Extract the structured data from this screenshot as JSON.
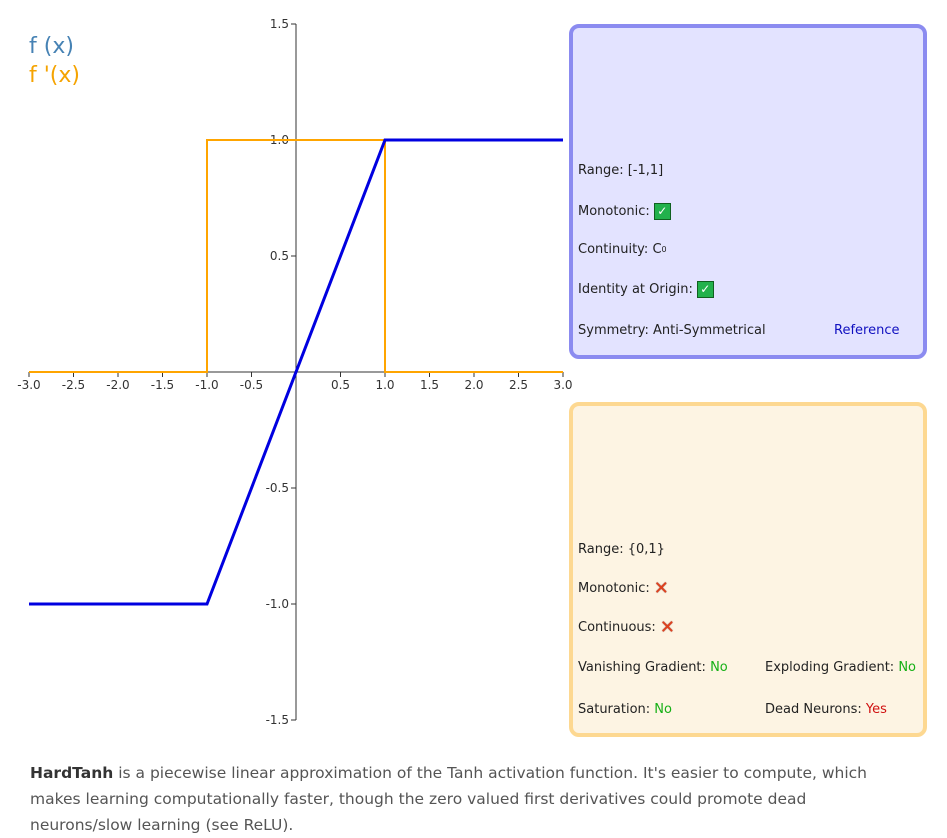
{
  "legend": {
    "f": "f (x)",
    "df": "f '(x)"
  },
  "chart_data": {
    "type": "line",
    "xlim": [
      -3.0,
      3.0
    ],
    "ylim": [
      -1.5,
      1.5
    ],
    "x_ticks": [
      -3.0,
      -2.5,
      -2.0,
      -1.5,
      -1.0,
      -0.5,
      0.5,
      1.0,
      1.5,
      2.0,
      2.5,
      3.0
    ],
    "y_ticks": [
      1.5,
      1.0,
      0.5,
      -0.5,
      -1.0,
      -1.5
    ],
    "grid": false,
    "series": [
      {
        "name": "f (x)",
        "color": "#0000e0",
        "points": [
          [
            -3.0,
            -1.0
          ],
          [
            -1.0,
            -1.0
          ],
          [
            1.0,
            1.0
          ],
          [
            3.0,
            1.0
          ]
        ]
      },
      {
        "name": "f '(x)",
        "color": "#ffa500",
        "points": [
          [
            -3.0,
            0.0
          ],
          [
            -1.0,
            0.0
          ],
          [
            -1.0,
            1.0
          ],
          [
            1.0,
            1.0
          ],
          [
            1.0,
            0.0
          ],
          [
            3.0,
            0.0
          ]
        ]
      }
    ]
  },
  "function_panel": {
    "range_label": "Range:",
    "range_value": "[-1,1]",
    "monotonic_label": "Monotonic:",
    "monotonic_value": "✓",
    "continuity_label": "Continuity:",
    "continuity_value": "C",
    "continuity_sup": "0",
    "identity_label": "Identity at Origin:",
    "identity_value": "✓",
    "symmetry_label": "Symmetry:",
    "symmetry_value": "Anti-Symmetrical",
    "reference_link": "Reference"
  },
  "derivative_panel": {
    "range_label": "Range:",
    "range_value": "{0,1}",
    "monotonic_label": "Monotonic:",
    "monotonic_value": "✕",
    "continuous_label": "Continuous:",
    "continuous_value": "✕",
    "vanishing_label": "Vanishing Gradient:",
    "vanishing_value": "No",
    "exploding_label": "Exploding Gradient:",
    "exploding_value": "No",
    "saturation_label": "Saturation:",
    "saturation_value": "No",
    "dead_label": "Dead Neurons:",
    "dead_value": "Yes"
  },
  "description": {
    "name": "HardTanh",
    "text": " is a piecewise linear approximation of the Tanh activation function. It's easier to compute, which makes learning computationally faster, though the zero valued first derivatives could promote dead neurons/slow learning (see ReLU)."
  },
  "colors": {
    "f_line": "#0000e0",
    "df_line": "#ffa500",
    "f_panel_bg": "#e3e3ff",
    "f_panel_border": "#8b8bf0",
    "df_panel_bg": "#fdf4e3",
    "df_panel_border": "#fdd891"
  }
}
